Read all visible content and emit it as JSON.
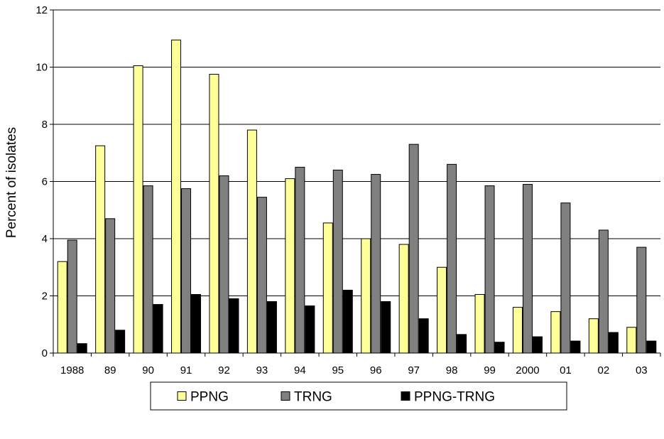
{
  "chart_data": {
    "type": "bar",
    "title": "",
    "xlabel": "",
    "ylabel": "Percent of isolates",
    "ylim": [
      0,
      12
    ],
    "yticks": [
      "0",
      "2",
      "4",
      "6",
      "8",
      "10",
      "12"
    ],
    "grid": true,
    "legend_position": "bottom",
    "categories": [
      "1988",
      "89",
      "90",
      "91",
      "92",
      "93",
      "94",
      "95",
      "96",
      "97",
      "98",
      "99",
      "2000",
      "01",
      "02",
      "03"
    ],
    "series": [
      {
        "name": "PPNG",
        "color": "#ffff99",
        "values": [
          3.2,
          7.25,
          10.05,
          10.95,
          9.75,
          7.8,
          6.1,
          4.55,
          4.0,
          3.8,
          3.0,
          2.05,
          1.6,
          1.45,
          1.2,
          0.9
        ]
      },
      {
        "name": "TRNG",
        "color": "#808080",
        "values": [
          3.95,
          4.7,
          5.85,
          5.75,
          6.2,
          5.45,
          6.5,
          6.4,
          6.25,
          7.3,
          6.6,
          5.85,
          5.9,
          5.25,
          4.3,
          3.7
        ]
      },
      {
        "name": "PPNG-TRNG",
        "color": "#000000",
        "values": [
          0.33,
          0.8,
          1.7,
          2.05,
          1.9,
          1.8,
          1.65,
          2.2,
          1.8,
          1.2,
          0.65,
          0.38,
          0.57,
          0.42,
          0.72,
          0.42
        ]
      }
    ]
  }
}
